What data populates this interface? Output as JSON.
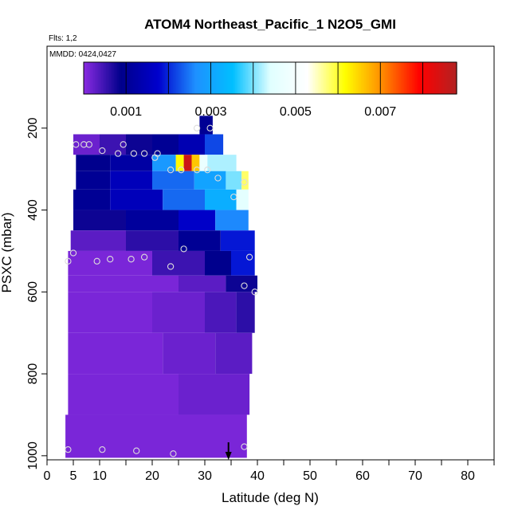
{
  "chart_data": {
    "type": "heatmap",
    "title": "ATOM4 Northeast_Pacific_1 N2O5_GMI",
    "annotations": {
      "flights": "Flts: 1,2",
      "dates": "MMDD: 0424,0427"
    },
    "xlabel": "Latitude (deg N)",
    "ylabel": "PSXC (mbar)",
    "xlim": [
      0,
      85
    ],
    "ylim": [
      1010,
      0
    ],
    "x_ticks": [
      0,
      5,
      10,
      20,
      30,
      40,
      50,
      60,
      70,
      80
    ],
    "x_tick_labels": [
      "0",
      "5",
      "10",
      "20",
      "30",
      "40",
      "50",
      "60",
      "70",
      "80"
    ],
    "x_minor_ticks": [
      15,
      25,
      35,
      45,
      55,
      65,
      75,
      85
    ],
    "y_ticks": [
      200,
      400,
      600,
      800,
      1000
    ],
    "y_tick_labels": [
      "200",
      "400",
      "600",
      "800",
      "1000"
    ],
    "colorbar": {
      "min": 0.0,
      "max": 0.0088,
      "ticks": [
        0.001,
        0.003,
        0.005,
        0.007
      ],
      "tick_labels": [
        "0.001",
        "0.003",
        "0.005",
        "0.007"
      ],
      "boundaries": [
        0.0,
        0.001,
        0.002,
        0.003,
        0.004,
        0.005,
        0.006,
        0.007,
        0.008,
        0.0088
      ],
      "colors": [
        "#8a2be2",
        "#00008b",
        "#0000cd",
        "#1e90ff",
        "#00bfff",
        "#e0ffff",
        "#ffffff",
        "#ffff00",
        "#ff8c00",
        "#ff0000",
        "#b22222"
      ]
    },
    "arrow_latitude": 34.5,
    "bands": [
      {
        "p_top": 170,
        "p_bot": 215,
        "segments": [
          {
            "lat0": 29.0,
            "lat1": 31.5,
            "value": 0.001
          }
        ]
      },
      {
        "p_top": 215,
        "p_bot": 265,
        "segments": [
          {
            "lat0": 5.0,
            "lat1": 10.0,
            "value": 0.0002
          },
          {
            "lat0": 10.0,
            "lat1": 15.0,
            "value": 0.0005
          },
          {
            "lat0": 15.0,
            "lat1": 20.0,
            "value": 0.0008
          },
          {
            "lat0": 20.0,
            "lat1": 25.0,
            "value": 0.001
          },
          {
            "lat0": 25.0,
            "lat1": 30.0,
            "value": 0.0014
          },
          {
            "lat0": 30.0,
            "lat1": 33.5,
            "value": 0.0022
          }
        ]
      },
      {
        "p_top": 265,
        "p_bot": 305,
        "segments": [
          {
            "lat0": 5.5,
            "lat1": 12.0,
            "value": 0.0009
          },
          {
            "lat0": 12.0,
            "lat1": 20.0,
            "value": 0.0012
          },
          {
            "lat0": 20.0,
            "lat1": 24.5,
            "value": 0.0028
          },
          {
            "lat0": 24.5,
            "lat1": 26.0,
            "value": 0.0062
          },
          {
            "lat0": 26.0,
            "lat1": 27.5,
            "value": 0.0085
          },
          {
            "lat0": 27.5,
            "lat1": 29.0,
            "value": 0.0066
          },
          {
            "lat0": 29.0,
            "lat1": 30.5,
            "value": 0.0047
          },
          {
            "lat0": 30.5,
            "lat1": 36.0,
            "value": 0.0042
          }
        ]
      },
      {
        "p_top": 305,
        "p_bot": 350,
        "segments": [
          {
            "lat0": 5.5,
            "lat1": 12.0,
            "value": 0.001
          },
          {
            "lat0": 12.0,
            "lat1": 20.0,
            "value": 0.0015
          },
          {
            "lat0": 20.0,
            "lat1": 28.0,
            "value": 0.0024
          },
          {
            "lat0": 28.0,
            "lat1": 34.0,
            "value": 0.003
          },
          {
            "lat0": 34.0,
            "lat1": 37.0,
            "value": 0.004
          },
          {
            "lat0": 37.0,
            "lat1": 38.3,
            "value": 0.0058
          }
        ]
      },
      {
        "p_top": 350,
        "p_bot": 400,
        "segments": [
          {
            "lat0": 5.0,
            "lat1": 12.0,
            "value": 0.001
          },
          {
            "lat0": 12.0,
            "lat1": 22.0,
            "value": 0.0015
          },
          {
            "lat0": 22.0,
            "lat1": 30.0,
            "value": 0.0024
          },
          {
            "lat0": 30.0,
            "lat1": 36.0,
            "value": 0.0032
          },
          {
            "lat0": 36.0,
            "lat1": 38.3,
            "value": 0.0045
          }
        ]
      },
      {
        "p_top": 400,
        "p_bot": 450,
        "segments": [
          {
            "lat0": 5.0,
            "lat1": 15.0,
            "value": 0.0008
          },
          {
            "lat0": 15.0,
            "lat1": 25.0,
            "value": 0.0011
          },
          {
            "lat0": 25.0,
            "lat1": 32.0,
            "value": 0.0017
          },
          {
            "lat0": 32.0,
            "lat1": 38.3,
            "value": 0.0026
          }
        ]
      },
      {
        "p_top": 450,
        "p_bot": 500,
        "segments": [
          {
            "lat0": 4.5,
            "lat1": 15.0,
            "value": 0.0003
          },
          {
            "lat0": 15.0,
            "lat1": 25.0,
            "value": 0.0006
          },
          {
            "lat0": 25.0,
            "lat1": 33.0,
            "value": 0.001
          },
          {
            "lat0": 33.0,
            "lat1": 39.5,
            "value": 0.0019
          }
        ]
      },
      {
        "p_top": 500,
        "p_bot": 560,
        "segments": [
          {
            "lat0": 4.0,
            "lat1": 20.0,
            "value": 0.0001
          },
          {
            "lat0": 20.0,
            "lat1": 30.0,
            "value": 0.0005
          },
          {
            "lat0": 30.0,
            "lat1": 35.0,
            "value": 0.0009
          },
          {
            "lat0": 35.0,
            "lat1": 39.5,
            "value": 0.0019
          }
        ]
      },
      {
        "p_top": 560,
        "p_bot": 600,
        "segments": [
          {
            "lat0": 4.0,
            "lat1": 25.0,
            "value": 0.0001
          },
          {
            "lat0": 25.0,
            "lat1": 34.0,
            "value": 0.0003
          },
          {
            "lat0": 34.0,
            "lat1": 40.0,
            "value": 0.0008
          }
        ]
      },
      {
        "p_top": 600,
        "p_bot": 700,
        "segments": [
          {
            "lat0": 4.0,
            "lat1": 20.0,
            "value": 0.0001
          },
          {
            "lat0": 20.0,
            "lat1": 30.0,
            "value": 0.0002
          },
          {
            "lat0": 30.0,
            "lat1": 36.0,
            "value": 0.0004
          },
          {
            "lat0": 36.0,
            "lat1": 39.5,
            "value": 0.0006
          }
        ]
      },
      {
        "p_top": 700,
        "p_bot": 800,
        "segments": [
          {
            "lat0": 4.0,
            "lat1": 22.0,
            "value": 0.0001
          },
          {
            "lat0": 22.0,
            "lat1": 32.0,
            "value": 0.0002
          },
          {
            "lat0": 32.0,
            "lat1": 39.0,
            "value": 0.0003
          }
        ]
      },
      {
        "p_top": 800,
        "p_bot": 900,
        "segments": [
          {
            "lat0": 4.0,
            "lat1": 25.0,
            "value": 0.0001
          },
          {
            "lat0": 25.0,
            "lat1": 38.5,
            "value": 0.0002
          }
        ]
      },
      {
        "p_top": 900,
        "p_bot": 1005,
        "segments": [
          {
            "lat0": 3.5,
            "lat1": 38.0,
            "value": 0.0001
          }
        ]
      }
    ],
    "points": [
      [
        28.5,
        200
      ],
      [
        31.0,
        200
      ],
      [
        5.5,
        240
      ],
      [
        7.0,
        240
      ],
      [
        8.0,
        240
      ],
      [
        14.5,
        240
      ],
      [
        10.5,
        255
      ],
      [
        13.5,
        262
      ],
      [
        16.5,
        262
      ],
      [
        18.5,
        262
      ],
      [
        20.5,
        272
      ],
      [
        21.0,
        262
      ],
      [
        23.5,
        302
      ],
      [
        25.5,
        302
      ],
      [
        28.5,
        302
      ],
      [
        30.5,
        302
      ],
      [
        32.5,
        322
      ],
      [
        37.5,
        332
      ],
      [
        35.5,
        368
      ],
      [
        5.0,
        505
      ],
      [
        4.0,
        525
      ],
      [
        9.5,
        525
      ],
      [
        12.0,
        520
      ],
      [
        16.0,
        520
      ],
      [
        18.5,
        515
      ],
      [
        23.5,
        538
      ],
      [
        26.0,
        495
      ],
      [
        38.5,
        515
      ],
      [
        37.5,
        585
      ],
      [
        39.5,
        600
      ],
      [
        4.0,
        985
      ],
      [
        10.5,
        985
      ],
      [
        17.0,
        988
      ],
      [
        24.0,
        995
      ],
      [
        37.5,
        978
      ]
    ]
  }
}
